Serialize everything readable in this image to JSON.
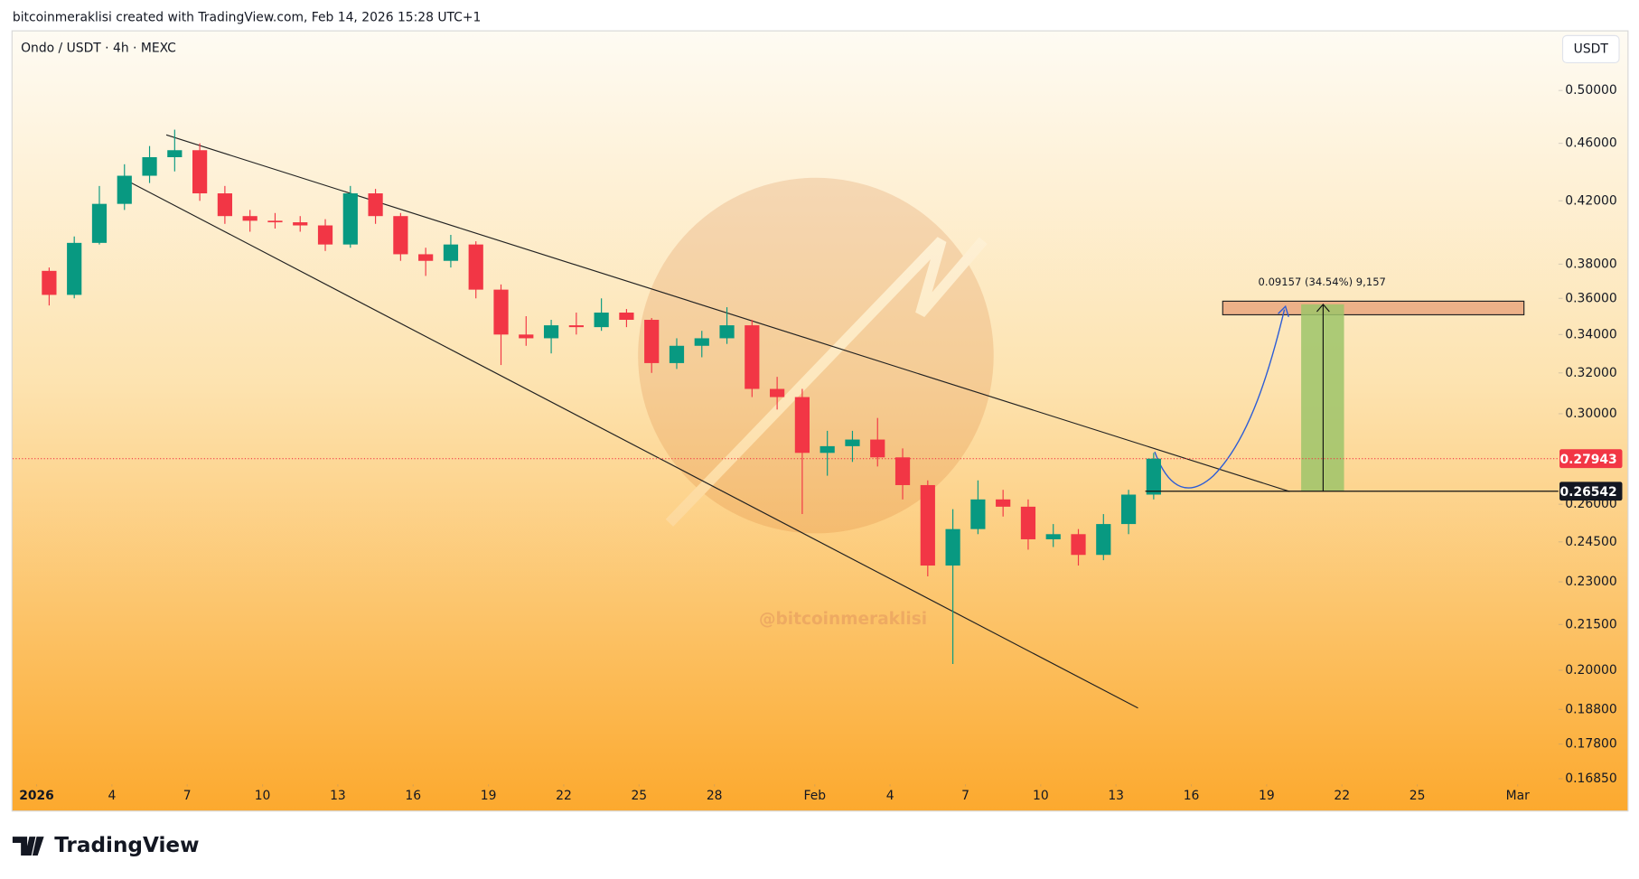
{
  "header": {
    "credit": "bitcoinmeraklisi created with TradingView.com, Feb 14, 2026 15:28 UTC+1"
  },
  "footer": {
    "brand": "TradingView"
  },
  "chart_data": {
    "type": "candlestick",
    "title": "Ondo / USDT · 4h · MEXC",
    "currency": "USDT",
    "watermark": "@bitcoinmeraklisi",
    "annotation": "0.09157 (34.54%) 9,157",
    "log_scale": true,
    "grid": false,
    "up_color": "#089981",
    "down_color": "#f23645",
    "x": [
      "2026-01-01",
      "2026-01-02",
      "2026-01-03",
      "2026-01-04",
      "2026-01-05",
      "2026-01-06",
      "2026-01-07",
      "2026-01-08",
      "2026-01-09",
      "2026-01-10",
      "2026-01-11",
      "2026-01-12",
      "2026-01-13",
      "2026-01-14",
      "2026-01-15",
      "2026-01-16",
      "2026-01-17",
      "2026-01-18",
      "2026-01-19",
      "2026-01-20",
      "2026-01-21",
      "2026-01-22",
      "2026-01-23",
      "2026-01-24",
      "2026-01-25",
      "2026-01-26",
      "2026-01-27",
      "2026-01-28",
      "2026-01-29",
      "2026-01-30",
      "2026-01-31",
      "2026-02-01",
      "2026-02-02",
      "2026-02-03",
      "2026-02-04",
      "2026-02-05",
      "2026-02-06",
      "2026-02-07",
      "2026-02-08",
      "2026-02-09",
      "2026-02-10",
      "2026-02-11",
      "2026-02-12",
      "2026-02-13",
      "2026-02-14"
    ],
    "open": [
      0.376,
      0.362,
      0.393,
      0.418,
      0.437,
      0.45,
      0.455,
      0.425,
      0.41,
      0.407,
      0.406,
      0.404,
      0.392,
      0.425,
      0.41,
      0.386,
      0.382,
      0.392,
      0.365,
      0.34,
      0.338,
      0.345,
      0.344,
      0.352,
      0.348,
      0.325,
      0.334,
      0.338,
      0.345,
      0.312,
      0.308,
      0.282,
      0.285,
      0.288,
      0.28,
      0.268,
      0.236,
      0.25,
      0.262,
      0.259,
      0.246,
      0.248,
      0.24,
      0.252,
      0.264
    ],
    "high": [
      0.378,
      0.397,
      0.43,
      0.445,
      0.458,
      0.47,
      0.46,
      0.43,
      0.414,
      0.412,
      0.41,
      0.408,
      0.43,
      0.428,
      0.412,
      0.39,
      0.398,
      0.394,
      0.368,
      0.35,
      0.348,
      0.352,
      0.36,
      0.354,
      0.349,
      0.338,
      0.342,
      0.355,
      0.348,
      0.318,
      0.312,
      0.292,
      0.292,
      0.298,
      0.284,
      0.27,
      0.258,
      0.27,
      0.266,
      0.262,
      0.252,
      0.25,
      0.256,
      0.266,
      0.282
    ],
    "low": [
      0.356,
      0.36,
      0.392,
      0.414,
      0.432,
      0.44,
      0.42,
      0.405,
      0.4,
      0.402,
      0.4,
      0.388,
      0.39,
      0.405,
      0.382,
      0.373,
      0.378,
      0.36,
      0.324,
      0.334,
      0.33,
      0.34,
      0.342,
      0.344,
      0.32,
      0.322,
      0.328,
      0.335,
      0.308,
      0.302,
      0.256,
      0.272,
      0.278,
      0.276,
      0.262,
      0.232,
      0.202,
      0.248,
      0.255,
      0.242,
      0.243,
      0.236,
      0.238,
      0.248,
      0.262
    ],
    "close": [
      0.362,
      0.393,
      0.418,
      0.437,
      0.45,
      0.455,
      0.425,
      0.41,
      0.407,
      0.406,
      0.404,
      0.392,
      0.425,
      0.41,
      0.386,
      0.382,
      0.392,
      0.365,
      0.34,
      0.338,
      0.345,
      0.344,
      0.352,
      0.348,
      0.325,
      0.334,
      0.338,
      0.345,
      0.312,
      0.308,
      0.282,
      0.285,
      0.288,
      0.28,
      0.268,
      0.236,
      0.25,
      0.262,
      0.259,
      0.246,
      0.248,
      0.24,
      0.252,
      0.264,
      0.27943
    ],
    "last_price": 0.27943,
    "level": 0.26542,
    "xlim": [
      "2026-01-01",
      "2026-03-03"
    ],
    "xticks": [
      {
        "value": "2026-01-01",
        "label": "2026"
      },
      {
        "value": "2026-01-04",
        "label": "4"
      },
      {
        "value": "2026-01-07",
        "label": "7"
      },
      {
        "value": "2026-01-10",
        "label": "10"
      },
      {
        "value": "2026-01-13",
        "label": "13"
      },
      {
        "value": "2026-01-16",
        "label": "16"
      },
      {
        "value": "2026-01-19",
        "label": "19"
      },
      {
        "value": "2026-01-22",
        "label": "22"
      },
      {
        "value": "2026-01-25",
        "label": "25"
      },
      {
        "value": "2026-01-28",
        "label": "28"
      },
      {
        "value": "2026-02-01",
        "label": "Feb"
      },
      {
        "value": "2026-02-04",
        "label": "4"
      },
      {
        "value": "2026-02-07",
        "label": "7"
      },
      {
        "value": "2026-02-10",
        "label": "10"
      },
      {
        "value": "2026-02-13",
        "label": "13"
      },
      {
        "value": "2026-02-16",
        "label": "16"
      },
      {
        "value": "2026-02-19",
        "label": "19"
      },
      {
        "value": "2026-02-22",
        "label": "22"
      },
      {
        "value": "2026-02-25",
        "label": "25"
      },
      {
        "value": "2026-03-01",
        "label": "Mar"
      }
    ],
    "ylim": [
      0.167,
      0.549
    ],
    "yticks": [
      {
        "value": 0.5,
        "label": "0.50000"
      },
      {
        "value": 0.46,
        "label": "0.46000"
      },
      {
        "value": 0.42,
        "label": "0.42000"
      },
      {
        "value": 0.38,
        "label": "0.38000"
      },
      {
        "value": 0.36,
        "label": "0.36000"
      },
      {
        "value": 0.34,
        "label": "0.34000"
      },
      {
        "value": 0.32,
        "label": "0.32000"
      },
      {
        "value": 0.3,
        "label": "0.30000"
      },
      {
        "value": 0.26,
        "label": "0.26000"
      },
      {
        "value": 0.245,
        "label": "0.24500"
      },
      {
        "value": 0.23,
        "label": "0.23000"
      },
      {
        "value": 0.215,
        "label": "0.21500"
      },
      {
        "value": 0.2,
        "label": "0.20000"
      },
      {
        "value": 0.188,
        "label": "0.18800"
      },
      {
        "value": 0.178,
        "label": "0.17800"
      },
      {
        "value": 0.1685,
        "label": "0.16850"
      }
    ]
  }
}
